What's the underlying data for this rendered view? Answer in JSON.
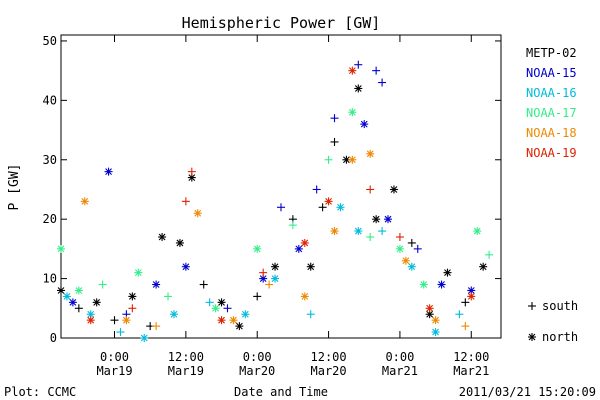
{
  "chart_data": {
    "type": "scatter",
    "title": "Hemispheric Power [GW]",
    "xlabel": "Date and Time",
    "ylabel": "P [GW]",
    "xlim": [
      "2011-03-18 15:00",
      "2011-03-21 17:00"
    ],
    "ylim": [
      0,
      51
    ],
    "x_ticks": [
      {
        "time": "2011-03-19 00:00",
        "line1": "0:00",
        "line2": "Mar19"
      },
      {
        "time": "2011-03-19 12:00",
        "line1": "12:00",
        "line2": "Mar19"
      },
      {
        "time": "2011-03-20 00:00",
        "line1": "0:00",
        "line2": "Mar20"
      },
      {
        "time": "2011-03-20 12:00",
        "line1": "12:00",
        "line2": "Mar20"
      },
      {
        "time": "2011-03-21 00:00",
        "line1": "0:00",
        "line2": "Mar21"
      },
      {
        "time": "2011-03-21 12:00",
        "line1": "12:00",
        "line2": "Mar21"
      }
    ],
    "y_ticks": [
      0,
      10,
      20,
      30,
      40,
      50
    ],
    "grid": false,
    "legend_placement": "right",
    "marker_legend": [
      {
        "marker": "+",
        "label": "south"
      },
      {
        "marker": "*",
        "label": "north"
      }
    ],
    "series": [
      {
        "name": "METP-02",
        "color": "#000000",
        "points": [
          {
            "t": "2011-03-18 15:00",
            "y": 8,
            "m": "*"
          },
          {
            "t": "2011-03-18 18:00",
            "y": 5,
            "m": "+"
          },
          {
            "t": "2011-03-18 21:00",
            "y": 6,
            "m": "*"
          },
          {
            "t": "2011-03-19 00:00",
            "y": 3,
            "m": "+"
          },
          {
            "t": "2011-03-19 03:00",
            "y": 7,
            "m": "*"
          },
          {
            "t": "2011-03-19 06:00",
            "y": 2,
            "m": "+"
          },
          {
            "t": "2011-03-19 08:00",
            "y": 17,
            "m": "*"
          },
          {
            "t": "2011-03-19 11:00",
            "y": 16,
            "m": "*"
          },
          {
            "t": "2011-03-19 13:00",
            "y": 27,
            "m": "*"
          },
          {
            "t": "2011-03-19 15:00",
            "y": 9,
            "m": "+"
          },
          {
            "t": "2011-03-19 18:00",
            "y": 6,
            "m": "*"
          },
          {
            "t": "2011-03-19 21:00",
            "y": 2,
            "m": "*"
          },
          {
            "t": "2011-03-20 00:00",
            "y": 7,
            "m": "+"
          },
          {
            "t": "2011-03-20 03:00",
            "y": 12,
            "m": "*"
          },
          {
            "t": "2011-03-20 06:00",
            "y": 20,
            "m": "+"
          },
          {
            "t": "2011-03-20 09:00",
            "y": 12,
            "m": "*"
          },
          {
            "t": "2011-03-20 11:00",
            "y": 22,
            "m": "+"
          },
          {
            "t": "2011-03-20 13:00",
            "y": 33,
            "m": "+"
          },
          {
            "t": "2011-03-20 15:00",
            "y": 30,
            "m": "*"
          },
          {
            "t": "2011-03-20 17:00",
            "y": 42,
            "m": "*"
          },
          {
            "t": "2011-03-20 20:00",
            "y": 20,
            "m": "*"
          },
          {
            "t": "2011-03-20 23:00",
            "y": 25,
            "m": "*"
          },
          {
            "t": "2011-03-21 02:00",
            "y": 16,
            "m": "+"
          },
          {
            "t": "2011-03-21 05:00",
            "y": 4,
            "m": "*"
          },
          {
            "t": "2011-03-21 08:00",
            "y": 11,
            "m": "*"
          },
          {
            "t": "2011-03-21 11:00",
            "y": 6,
            "m": "+"
          },
          {
            "t": "2011-03-21 14:00",
            "y": 12,
            "m": "*"
          }
        ]
      },
      {
        "name": "NOAA-15",
        "color": "#0000cc",
        "points": [
          {
            "t": "2011-03-18 17:00",
            "y": 6,
            "m": "*"
          },
          {
            "t": "2011-03-18 23:00",
            "y": 28,
            "m": "*"
          },
          {
            "t": "2011-03-19 02:00",
            "y": 4,
            "m": "+"
          },
          {
            "t": "2011-03-19 07:00",
            "y": 9,
            "m": "*"
          },
          {
            "t": "2011-03-19 12:00",
            "y": 12,
            "m": "*"
          },
          {
            "t": "2011-03-19 19:00",
            "y": 5,
            "m": "+"
          },
          {
            "t": "2011-03-20 01:00",
            "y": 10,
            "m": "*"
          },
          {
            "t": "2011-03-20 04:00",
            "y": 22,
            "m": "+"
          },
          {
            "t": "2011-03-20 07:00",
            "y": 15,
            "m": "*"
          },
          {
            "t": "2011-03-20 10:00",
            "y": 25,
            "m": "+"
          },
          {
            "t": "2011-03-20 13:00",
            "y": 37,
            "m": "+"
          },
          {
            "t": "2011-03-20 17:00",
            "y": 46,
            "m": "+"
          },
          {
            "t": "2011-03-20 18:00",
            "y": 36,
            "m": "*"
          },
          {
            "t": "2011-03-20 20:00",
            "y": 45,
            "m": "+"
          },
          {
            "t": "2011-03-20 21:00",
            "y": 43,
            "m": "+"
          },
          {
            "t": "2011-03-20 22:00",
            "y": 20,
            "m": "*"
          },
          {
            "t": "2011-03-21 03:00",
            "y": 15,
            "m": "+"
          },
          {
            "t": "2011-03-21 07:00",
            "y": 9,
            "m": "*"
          },
          {
            "t": "2011-03-21 12:00",
            "y": 8,
            "m": "*"
          }
        ]
      },
      {
        "name": "NOAA-16",
        "color": "#00bbdd",
        "points": [
          {
            "t": "2011-03-18 16:00",
            "y": 7,
            "m": "*"
          },
          {
            "t": "2011-03-18 20:00",
            "y": 4,
            "m": "*"
          },
          {
            "t": "2011-03-19 01:00",
            "y": 1,
            "m": "+"
          },
          {
            "t": "2011-03-19 05:00",
            "y": 0,
            "m": "*"
          },
          {
            "t": "2011-03-19 10:00",
            "y": 4,
            "m": "*"
          },
          {
            "t": "2011-03-19 16:00",
            "y": 6,
            "m": "+"
          },
          {
            "t": "2011-03-19 22:00",
            "y": 4,
            "m": "*"
          },
          {
            "t": "2011-03-20 03:00",
            "y": 10,
            "m": "*"
          },
          {
            "t": "2011-03-20 09:00",
            "y": 4,
            "m": "+"
          },
          {
            "t": "2011-03-20 14:00",
            "y": 22,
            "m": "*"
          },
          {
            "t": "2011-03-20 17:00",
            "y": 18,
            "m": "*"
          },
          {
            "t": "2011-03-20 21:00",
            "y": 18,
            "m": "+"
          },
          {
            "t": "2011-03-21 02:00",
            "y": 12,
            "m": "*"
          },
          {
            "t": "2011-03-21 06:00",
            "y": 1,
            "m": "*"
          },
          {
            "t": "2011-03-21 10:00",
            "y": 4,
            "m": "+"
          }
        ]
      },
      {
        "name": "NOAA-17",
        "color": "#33ee88",
        "points": [
          {
            "t": "2011-03-18 15:00",
            "y": 15,
            "m": "*"
          },
          {
            "t": "2011-03-18 18:00",
            "y": 8,
            "m": "*"
          },
          {
            "t": "2011-03-18 22:00",
            "y": 9,
            "m": "+"
          },
          {
            "t": "2011-03-19 04:00",
            "y": 11,
            "m": "*"
          },
          {
            "t": "2011-03-19 09:00",
            "y": 7,
            "m": "+"
          },
          {
            "t": "2011-03-19 17:00",
            "y": 5,
            "m": "*"
          },
          {
            "t": "2011-03-20 00:00",
            "y": 15,
            "m": "*"
          },
          {
            "t": "2011-03-20 06:00",
            "y": 19,
            "m": "+"
          },
          {
            "t": "2011-03-20 12:00",
            "y": 30,
            "m": "+"
          },
          {
            "t": "2011-03-20 16:00",
            "y": 38,
            "m": "*"
          },
          {
            "t": "2011-03-20 19:00",
            "y": 17,
            "m": "+"
          },
          {
            "t": "2011-03-21 00:00",
            "y": 15,
            "m": "*"
          },
          {
            "t": "2011-03-21 04:00",
            "y": 9,
            "m": "*"
          },
          {
            "t": "2011-03-21 13:00",
            "y": 18,
            "m": "*"
          },
          {
            "t": "2011-03-21 15:00",
            "y": 14,
            "m": "+"
          }
        ]
      },
      {
        "name": "NOAA-18",
        "color": "#ee8800",
        "points": [
          {
            "t": "2011-03-18 19:00",
            "y": 23,
            "m": "*"
          },
          {
            "t": "2011-03-19 02:00",
            "y": 3,
            "m": "*"
          },
          {
            "t": "2011-03-19 07:00",
            "y": 2,
            "m": "+"
          },
          {
            "t": "2011-03-19 14:00",
            "y": 21,
            "m": "*"
          },
          {
            "t": "2011-03-19 20:00",
            "y": 3,
            "m": "*"
          },
          {
            "t": "2011-03-20 02:00",
            "y": 9,
            "m": "+"
          },
          {
            "t": "2011-03-20 08:00",
            "y": 7,
            "m": "*"
          },
          {
            "t": "2011-03-20 13:00",
            "y": 18,
            "m": "*"
          },
          {
            "t": "2011-03-20 16:00",
            "y": 30,
            "m": "*"
          },
          {
            "t": "2011-03-20 19:00",
            "y": 31,
            "m": "*"
          },
          {
            "t": "2011-03-21 01:00",
            "y": 13,
            "m": "*"
          },
          {
            "t": "2011-03-21 06:00",
            "y": 3,
            "m": "*"
          },
          {
            "t": "2011-03-21 11:00",
            "y": 2,
            "m": "+"
          }
        ]
      },
      {
        "name": "NOAA-19",
        "color": "#dd2200",
        "points": [
          {
            "t": "2011-03-18 20:00",
            "y": 3,
            "m": "*"
          },
          {
            "t": "2011-03-19 03:00",
            "y": 5,
            "m": "+"
          },
          {
            "t": "2011-03-19 12:00",
            "y": 23,
            "m": "+"
          },
          {
            "t": "2011-03-19 13:00",
            "y": 28,
            "m": "+"
          },
          {
            "t": "2011-03-19 18:00",
            "y": 3,
            "m": "*"
          },
          {
            "t": "2011-03-20 01:00",
            "y": 11,
            "m": "+"
          },
          {
            "t": "2011-03-20 08:00",
            "y": 16,
            "m": "*"
          },
          {
            "t": "2011-03-20 12:00",
            "y": 23,
            "m": "*"
          },
          {
            "t": "2011-03-20 16:00",
            "y": 45,
            "m": "*"
          },
          {
            "t": "2011-03-20 19:00",
            "y": 25,
            "m": "+"
          },
          {
            "t": "2011-03-21 00:00",
            "y": 17,
            "m": "+"
          },
          {
            "t": "2011-03-21 05:00",
            "y": 5,
            "m": "*"
          },
          {
            "t": "2011-03-21 12:00",
            "y": 7,
            "m": "*"
          }
        ]
      }
    ]
  },
  "footer": {
    "left": "Plot: CCMC",
    "right": "2011/03/21 15:20:09"
  }
}
